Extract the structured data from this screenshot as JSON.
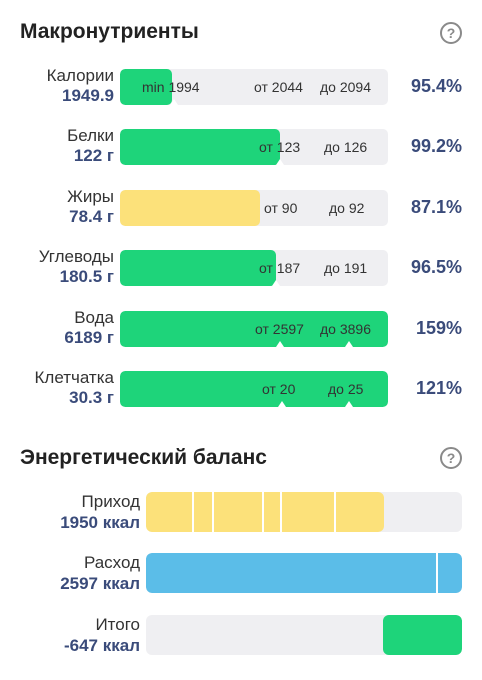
{
  "macros": {
    "title": "Макронутриенты",
    "help": "?",
    "rows": [
      {
        "name": "Калории",
        "value": "1949.9",
        "pct": "95.4%",
        "min": "min 1994",
        "from": "от 2044",
        "to": "до 2094",
        "fill_fraction": 0.19,
        "color": "#1ed47a"
      },
      {
        "name": "Белки",
        "value": "122 г",
        "pct": "99.2%",
        "from": "от 123",
        "to": "до 126",
        "fill_fraction": 0.59,
        "color": "#1ed47a"
      },
      {
        "name": "Жиры",
        "value": "78.4 г",
        "pct": "87.1%",
        "from": "от 90",
        "to": "до 92",
        "fill_fraction": 0.52,
        "color": "#fce17a"
      },
      {
        "name": "Углеводы",
        "value": "180.5 г",
        "pct": "96.5%",
        "from": "от 187",
        "to": "до 191",
        "fill_fraction": 0.58,
        "color": "#1ed47a"
      },
      {
        "name": "Вода",
        "value": "6189 г",
        "pct": "159%",
        "from": "от 2597",
        "to": "до 3896",
        "fill_fraction": 1.0,
        "color": "#1ed47a"
      },
      {
        "name": "Клетчатка",
        "value": "30.3 г",
        "pct": "121%",
        "from": "от 20",
        "to": "до 25",
        "fill_fraction": 1.0,
        "color": "#1ed47a"
      }
    ]
  },
  "energy": {
    "title": "Энергетический баланс",
    "help": "?",
    "rows": [
      {
        "name": "Приход",
        "value": "1950 ккал",
        "fill_fraction": 0.75,
        "color": "#fce17a"
      },
      {
        "name": "Расход",
        "value": "2597 ккал",
        "fill_fraction": 1.0,
        "color": "#5bbde8"
      },
      {
        "name": "Итого",
        "value": "-647 ккал",
        "fill_fraction": 0.25,
        "color": "#1ed47a"
      }
    ]
  }
}
